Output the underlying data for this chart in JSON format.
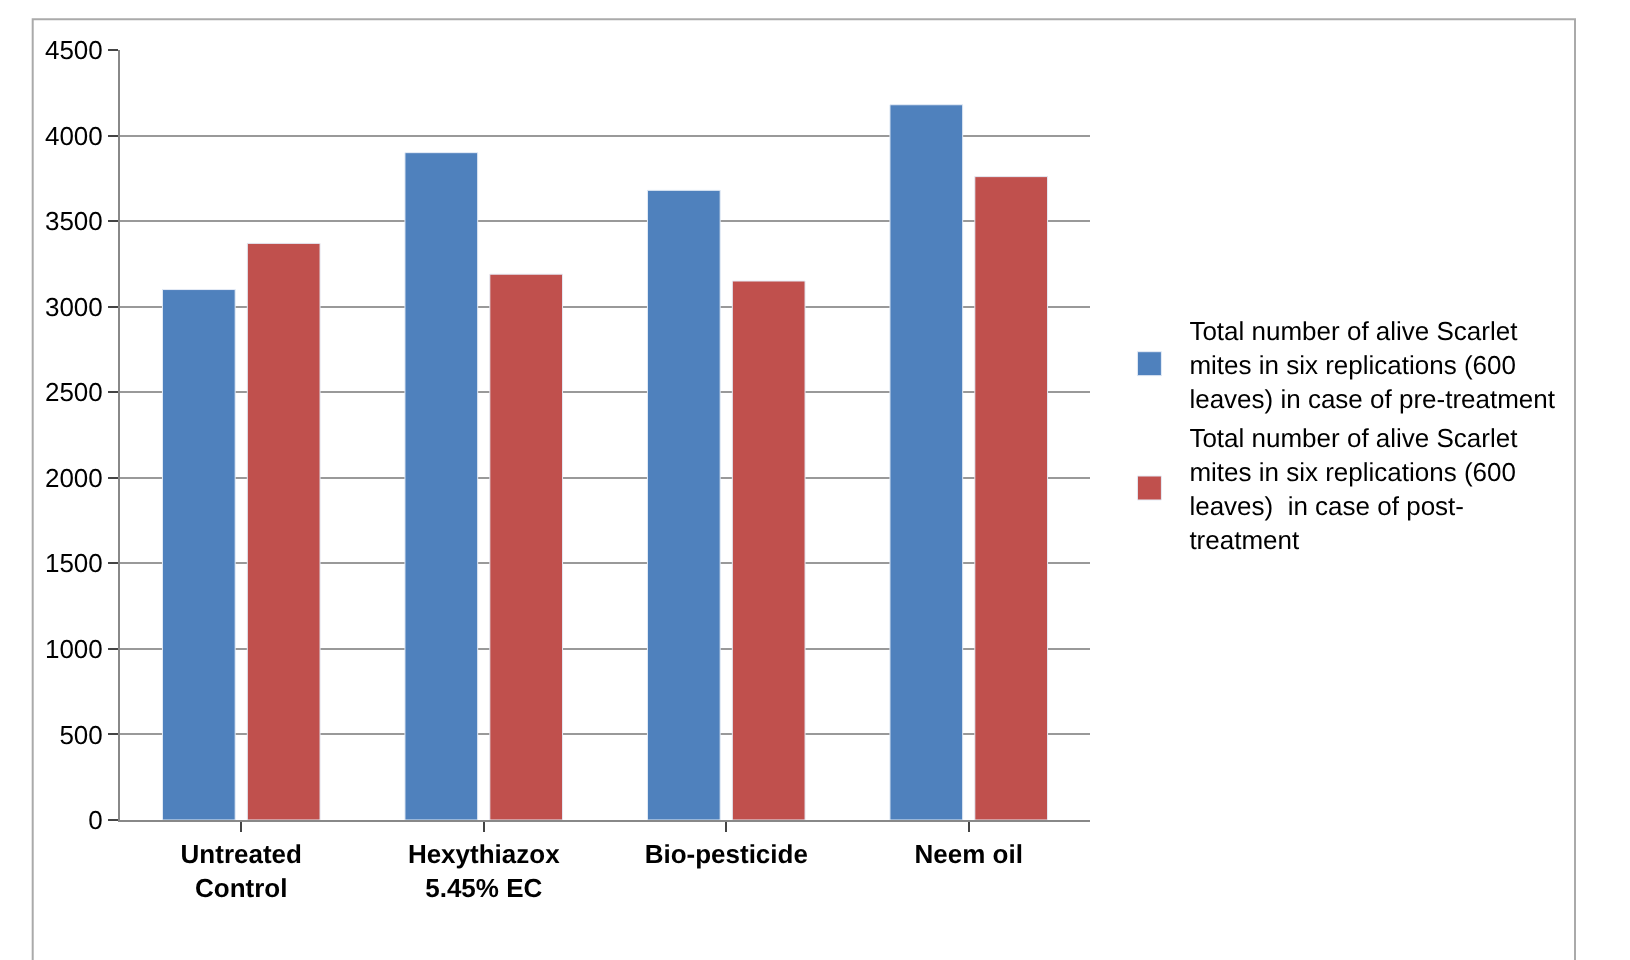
{
  "chart_data": {
    "type": "bar",
    "categories": [
      "Untreated\nControl",
      "Hexythiazox\n5.45% EC",
      "Bio-pesticide",
      "Neem oil"
    ],
    "series": [
      {
        "name": "Total number of alive Scarlet\nmites in six replications (600\nleaves) in case of pre-treatment",
        "color": "#4f81bd",
        "values": [
          3100,
          3900,
          3680,
          4180
        ]
      },
      {
        "name": "Total number of alive Scarlet\nmites in six replications (600\nleaves)  in case of post-\ntreatment",
        "color": "#c0504d",
        "values": [
          3370,
          3190,
          3150,
          3760
        ]
      }
    ],
    "ylim": [
      0,
      4500
    ],
    "yticks": [
      0,
      500,
      1000,
      1500,
      2000,
      2500,
      3000,
      3500,
      4000,
      4500
    ],
    "grid": "y",
    "legend": "right"
  }
}
